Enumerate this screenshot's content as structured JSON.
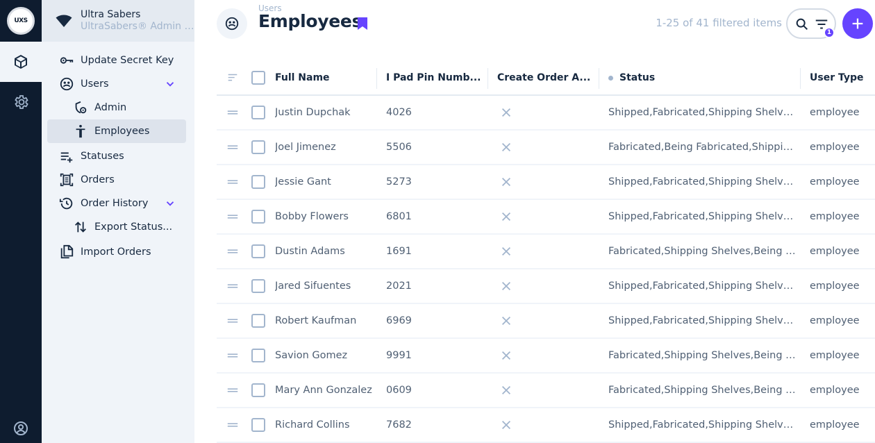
{
  "logo": {
    "text": "UXS"
  },
  "project": {
    "name": "Ultra Sabers",
    "description": "UltraSabers® Admin Panel"
  },
  "nav": {
    "items": [
      {
        "label": "Update Secret Key",
        "icon": "key-icon"
      },
      {
        "label": "Users",
        "icon": "users-icon"
      },
      {
        "label": "Admin",
        "icon": "admin-icon"
      },
      {
        "label": "Employees",
        "icon": "person-icon"
      },
      {
        "label": "Statuses",
        "icon": "playlist-add-icon"
      },
      {
        "label": "Orders",
        "icon": "document-scanner-icon"
      },
      {
        "label": "Order History",
        "icon": "history-icon"
      },
      {
        "label": "Export Status...",
        "icon": "import-export-icon"
      },
      {
        "label": "Import Orders",
        "icon": "file-copy-icon"
      }
    ]
  },
  "header": {
    "breadcrumb": "Users",
    "title": "Employees",
    "items_count": "1-25 of 41 filtered items",
    "filter_badge": "1"
  },
  "table": {
    "columns": [
      "Full Name",
      "I Pad Pin Numb...",
      "Create Order A...",
      "Status",
      "User Type"
    ],
    "rows": [
      {
        "name": "Justin Dupchak",
        "pin": "4026",
        "status": "Shipped,Fabricated,Shipping Shelves,Being Fabricated",
        "type": "employee"
      },
      {
        "name": "Joel Jimenez",
        "pin": "5506",
        "status": "Fabricated,Being Fabricated,Shipping Shelves,Shipped",
        "type": "employee"
      },
      {
        "name": "Jessie Gant",
        "pin": "5273",
        "status": "Shipped,Fabricated,Shipping Shelves,Being Fabricated",
        "type": "employee"
      },
      {
        "name": "Bobby Flowers",
        "pin": "6801",
        "status": "Shipped,Fabricated,Shipping Shelves,Being Fabricated",
        "type": "employee"
      },
      {
        "name": "Dustin Adams",
        "pin": "1691",
        "status": "Fabricated,Shipping Shelves,Being Fabricated,Shipped",
        "type": "employee"
      },
      {
        "name": "Jared Sifuentes",
        "pin": "2021",
        "status": "Shipped,Fabricated,Shipping Shelves,Being Fabricated",
        "type": "employee"
      },
      {
        "name": "Robert Kaufman",
        "pin": "6969",
        "status": "Shipped,Fabricated,Shipping Shelves,Being Fabricated",
        "type": "employee"
      },
      {
        "name": "Savion Gomez",
        "pin": "9991",
        "status": "Fabricated,Shipping Shelves,Being Fabricated,Shipped",
        "type": "employee"
      },
      {
        "name": "Mary Ann Gonzalez",
        "pin": "0609",
        "status": "Fabricated,Shipping Shelves,Being Fabricated,Shipped",
        "type": "employee"
      },
      {
        "name": "Richard Collins",
        "pin": "7682",
        "status": "Shipped,Fabricated,Shipping Shelves,Being Fabricated",
        "type": "employee"
      }
    ]
  },
  "colors": {
    "accent": "#6644ff",
    "module_bar": "#0e1c2f",
    "nav_bg": "#f0f4f9"
  }
}
